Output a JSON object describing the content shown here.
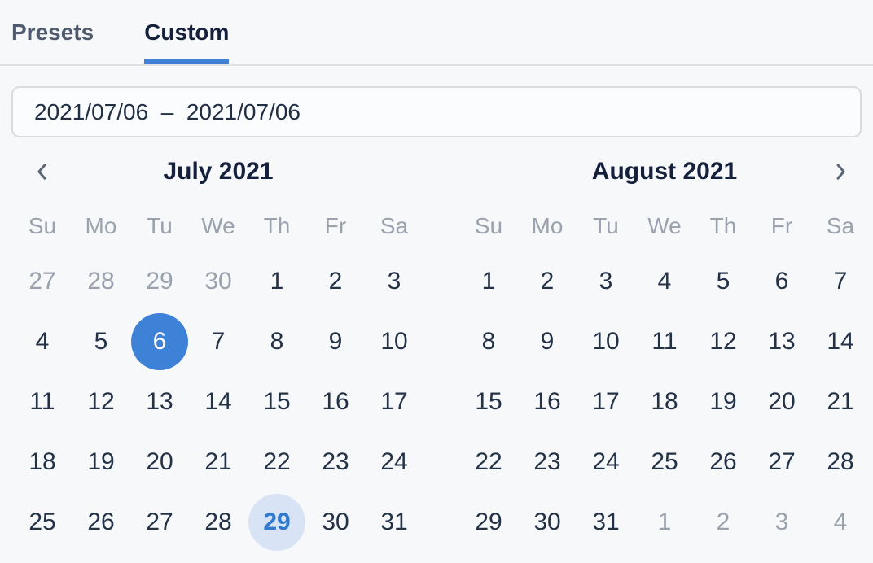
{
  "tabs": [
    {
      "label": "Presets",
      "active": false
    },
    {
      "label": "Custom",
      "active": true
    }
  ],
  "date_input": {
    "value": "2021/07/06  –  2021/07/06"
  },
  "nav": {
    "prev_icon": "chevron-left",
    "next_icon": "chevron-right"
  },
  "weekdays": [
    "Su",
    "Mo",
    "Tu",
    "We",
    "Th",
    "Fr",
    "Sa"
  ],
  "months": [
    {
      "title": "July 2021",
      "days": [
        {
          "label": "27",
          "state": "muted"
        },
        {
          "label": "28",
          "state": "muted"
        },
        {
          "label": "29",
          "state": "muted"
        },
        {
          "label": "30",
          "state": "muted"
        },
        {
          "label": "1",
          "state": "normal"
        },
        {
          "label": "2",
          "state": "normal"
        },
        {
          "label": "3",
          "state": "normal"
        },
        {
          "label": "4",
          "state": "normal"
        },
        {
          "label": "5",
          "state": "normal"
        },
        {
          "label": "6",
          "state": "selected"
        },
        {
          "label": "7",
          "state": "normal"
        },
        {
          "label": "8",
          "state": "normal"
        },
        {
          "label": "9",
          "state": "normal"
        },
        {
          "label": "10",
          "state": "normal"
        },
        {
          "label": "11",
          "state": "normal"
        },
        {
          "label": "12",
          "state": "normal"
        },
        {
          "label": "13",
          "state": "normal"
        },
        {
          "label": "14",
          "state": "normal"
        },
        {
          "label": "15",
          "state": "normal"
        },
        {
          "label": "16",
          "state": "normal"
        },
        {
          "label": "17",
          "state": "normal"
        },
        {
          "label": "18",
          "state": "normal"
        },
        {
          "label": "19",
          "state": "normal"
        },
        {
          "label": "20",
          "state": "normal"
        },
        {
          "label": "21",
          "state": "normal"
        },
        {
          "label": "22",
          "state": "normal"
        },
        {
          "label": "23",
          "state": "normal"
        },
        {
          "label": "24",
          "state": "normal"
        },
        {
          "label": "25",
          "state": "normal"
        },
        {
          "label": "26",
          "state": "normal"
        },
        {
          "label": "27",
          "state": "normal"
        },
        {
          "label": "28",
          "state": "normal"
        },
        {
          "label": "29",
          "state": "today"
        },
        {
          "label": "30",
          "state": "normal"
        },
        {
          "label": "31",
          "state": "normal"
        }
      ]
    },
    {
      "title": "August 2021",
      "days": [
        {
          "label": "1",
          "state": "normal"
        },
        {
          "label": "2",
          "state": "normal"
        },
        {
          "label": "3",
          "state": "normal"
        },
        {
          "label": "4",
          "state": "normal"
        },
        {
          "label": "5",
          "state": "normal"
        },
        {
          "label": "6",
          "state": "normal"
        },
        {
          "label": "7",
          "state": "normal"
        },
        {
          "label": "8",
          "state": "normal"
        },
        {
          "label": "9",
          "state": "normal"
        },
        {
          "label": "10",
          "state": "normal"
        },
        {
          "label": "11",
          "state": "normal"
        },
        {
          "label": "12",
          "state": "normal"
        },
        {
          "label": "13",
          "state": "normal"
        },
        {
          "label": "14",
          "state": "normal"
        },
        {
          "label": "15",
          "state": "normal"
        },
        {
          "label": "16",
          "state": "normal"
        },
        {
          "label": "17",
          "state": "normal"
        },
        {
          "label": "18",
          "state": "normal"
        },
        {
          "label": "19",
          "state": "normal"
        },
        {
          "label": "20",
          "state": "normal"
        },
        {
          "label": "21",
          "state": "normal"
        },
        {
          "label": "22",
          "state": "normal"
        },
        {
          "label": "23",
          "state": "normal"
        },
        {
          "label": "24",
          "state": "normal"
        },
        {
          "label": "25",
          "state": "normal"
        },
        {
          "label": "26",
          "state": "normal"
        },
        {
          "label": "27",
          "state": "normal"
        },
        {
          "label": "28",
          "state": "normal"
        },
        {
          "label": "29",
          "state": "normal"
        },
        {
          "label": "30",
          "state": "normal"
        },
        {
          "label": "31",
          "state": "normal"
        },
        {
          "label": "1",
          "state": "muted"
        },
        {
          "label": "2",
          "state": "muted"
        },
        {
          "label": "3",
          "state": "muted"
        },
        {
          "label": "4",
          "state": "muted"
        }
      ]
    }
  ],
  "colors": {
    "accent": "#3d82d6",
    "accent_soft": "#d8e4f5",
    "accent_text": "#2e7ad0",
    "text_dark": "#15213c",
    "text_muted": "#9aa2ae",
    "background": "#f7f8fa"
  }
}
